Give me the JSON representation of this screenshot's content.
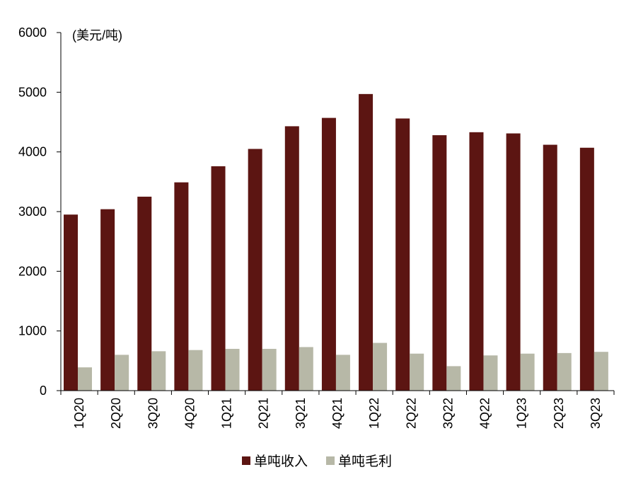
{
  "colors": {
    "revenue": "#5c1512",
    "margin": "#b7b8a7",
    "axis": "#000000"
  },
  "chart_data": {
    "type": "bar",
    "unit_label": "(美元/吨)",
    "categories": [
      "1Q20",
      "2Q20",
      "3Q20",
      "4Q20",
      "1Q21",
      "2Q21",
      "3Q21",
      "4Q21",
      "1Q22",
      "2Q22",
      "3Q22",
      "4Q22",
      "1Q23",
      "2Q23",
      "3Q23"
    ],
    "series": [
      {
        "name": "单吨收入",
        "values": [
          2950,
          3040,
          3250,
          3490,
          3760,
          4050,
          4430,
          4570,
          4970,
          4560,
          4280,
          4330,
          4310,
          4120,
          4070
        ]
      },
      {
        "name": "单吨毛利",
        "values": [
          390,
          600,
          660,
          680,
          700,
          700,
          730,
          600,
          800,
          620,
          410,
          590,
          620,
          630,
          650
        ]
      }
    ],
    "ylim": [
      0,
      6000
    ],
    "yticks": [
      "0",
      "1000",
      "2000",
      "3000",
      "4000",
      "5000",
      "6000"
    ],
    "ytick_values": [
      0,
      1000,
      2000,
      3000,
      4000,
      5000,
      6000
    ],
    "legend_position": "bottom",
    "grid": false
  }
}
